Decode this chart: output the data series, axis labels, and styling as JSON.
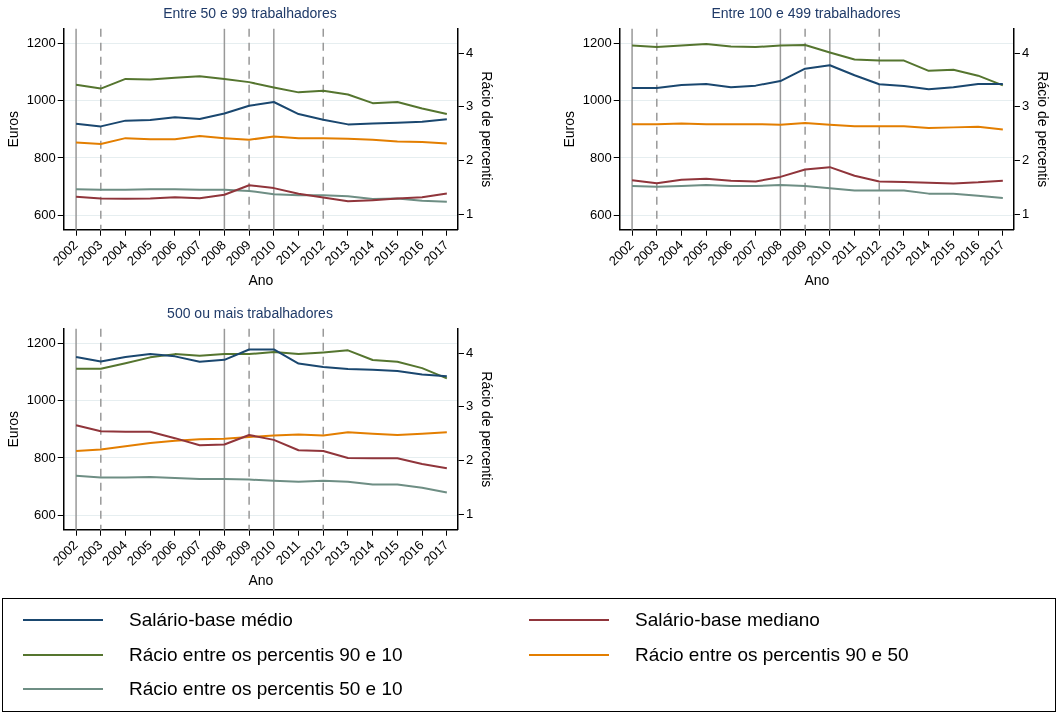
{
  "chart_data": [
    {
      "type": "line",
      "title": "Entre 50 e 99 trabalhadores",
      "xlabel": "Ano",
      "ylabel": "Euros",
      "y2label": "Rácio de percentis",
      "x": [
        2002,
        2003,
        2004,
        2005,
        2006,
        2007,
        2008,
        2009,
        2010,
        2011,
        2012,
        2013,
        2014,
        2015,
        2016,
        2017
      ],
      "xlim": [
        2001.5,
        2017.45
      ],
      "xticks": [
        2002,
        2003,
        2004,
        2005,
        2006,
        2007,
        2008,
        2009,
        2010,
        2011,
        2012,
        2013,
        2014,
        2015,
        2016,
        2017
      ],
      "ylim": [
        550,
        1250
      ],
      "yticks": [
        600,
        800,
        1000,
        1200
      ],
      "y2lim": [
        0.72,
        4.45
      ],
      "y2ticks": [
        1,
        2,
        3,
        4
      ],
      "grid": "y",
      "line_style": "solid",
      "ref_lines": [
        {
          "axis": "x",
          "value": 2002,
          "color": "#999999",
          "line_style": "solid"
        },
        {
          "axis": "x",
          "value": 2008,
          "color": "#999999",
          "line_style": "solid"
        },
        {
          "axis": "x",
          "value": 2010,
          "color": "#999999",
          "line_style": "solid"
        },
        {
          "axis": "x",
          "value": 2003,
          "color": "#999999",
          "line_style": "dashed"
        },
        {
          "axis": "x",
          "value": 2009,
          "color": "#999999",
          "line_style": "dashed"
        },
        {
          "axis": "x",
          "value": 2012,
          "color": "#999999",
          "line_style": "dashed"
        }
      ],
      "series": [
        {
          "color": "#1a476f",
          "values": [
            919,
            910,
            930,
            932,
            942,
            936,
            955,
            982,
            995,
            953,
            933,
            917,
            920,
            923,
            926,
            935
          ]
        },
        {
          "color": "#90353b",
          "values": [
            665,
            659,
            658,
            659,
            663,
            660,
            672,
            705,
            695,
            675,
            662,
            649,
            653,
            659,
            663,
            676
          ]
        },
        {
          "color": "#55752f",
          "axis": "y2",
          "values": [
            3.41,
            3.34,
            3.52,
            3.51,
            3.54,
            3.57,
            3.52,
            3.46,
            3.36,
            3.27,
            3.3,
            3.23,
            3.07,
            3.09,
            2.97,
            2.87
          ]
        },
        {
          "color": "#e37e00",
          "axis": "y2",
          "values": [
            2.34,
            2.31,
            2.42,
            2.4,
            2.4,
            2.46,
            2.42,
            2.39,
            2.45,
            2.42,
            2.42,
            2.41,
            2.39,
            2.36,
            2.35,
            2.32
          ]
        },
        {
          "color": "#6e8e84",
          "axis": "y2",
          "values": [
            1.47,
            1.46,
            1.46,
            1.47,
            1.47,
            1.46,
            1.46,
            1.44,
            1.38,
            1.36,
            1.36,
            1.34,
            1.29,
            1.3,
            1.26,
            1.24
          ]
        }
      ]
    },
    {
      "type": "line",
      "title": "Entre 100 e 499 trabalhadores",
      "xlabel": "Ano",
      "ylabel": "Euros",
      "y2label": "Rácio de percentis",
      "x": [
        2002,
        2003,
        2004,
        2005,
        2006,
        2007,
        2008,
        2009,
        2010,
        2011,
        2012,
        2013,
        2014,
        2015,
        2016,
        2017
      ],
      "xlim": [
        2001.5,
        2017.45
      ],
      "xticks": [
        2002,
        2003,
        2004,
        2005,
        2006,
        2007,
        2008,
        2009,
        2010,
        2011,
        2012,
        2013,
        2014,
        2015,
        2016,
        2017
      ],
      "ylim": [
        550,
        1250
      ],
      "yticks": [
        600,
        800,
        1000,
        1200
      ],
      "y2lim": [
        0.72,
        4.45
      ],
      "y2ticks": [
        1,
        2,
        3,
        4
      ],
      "grid": "y",
      "line_style": "solid",
      "ref_lines": [
        {
          "axis": "x",
          "value": 2002,
          "color": "#999999",
          "line_style": "solid"
        },
        {
          "axis": "x",
          "value": 2008,
          "color": "#999999",
          "line_style": "solid"
        },
        {
          "axis": "x",
          "value": 2010,
          "color": "#999999",
          "line_style": "solid"
        },
        {
          "axis": "x",
          "value": 2003,
          "color": "#999999",
          "line_style": "dashed"
        },
        {
          "axis": "x",
          "value": 2009,
          "color": "#999999",
          "line_style": "dashed"
        },
        {
          "axis": "x",
          "value": 2012,
          "color": "#999999",
          "line_style": "dashed"
        }
      ],
      "series": [
        {
          "color": "#1a476f",
          "values": [
            1044,
            1044,
            1054,
            1058,
            1046,
            1052,
            1068,
            1111,
            1123,
            1088,
            1057,
            1051,
            1039,
            1046,
            1058,
            1058
          ]
        },
        {
          "color": "#90353b",
          "values": [
            722,
            712,
            724,
            728,
            721,
            718,
            734,
            760,
            768,
            738,
            718,
            716,
            714,
            711,
            715,
            721
          ]
        },
        {
          "color": "#55752f",
          "axis": "y2",
          "values": [
            4.14,
            4.11,
            4.14,
            4.17,
            4.12,
            4.11,
            4.14,
            4.15,
            4.01,
            3.88,
            3.86,
            3.86,
            3.67,
            3.69,
            3.58,
            3.4
          ]
        },
        {
          "color": "#e37e00",
          "axis": "y2",
          "values": [
            2.68,
            2.68,
            2.69,
            2.68,
            2.68,
            2.68,
            2.67,
            2.7,
            2.67,
            2.64,
            2.64,
            2.64,
            2.61,
            2.62,
            2.63,
            2.58
          ]
        },
        {
          "color": "#6e8e84",
          "axis": "y2",
          "values": [
            1.53,
            1.52,
            1.53,
            1.55,
            1.53,
            1.53,
            1.55,
            1.53,
            1.49,
            1.45,
            1.45,
            1.45,
            1.39,
            1.39,
            1.35,
            1.31
          ]
        }
      ]
    },
    {
      "type": "line",
      "title": "500 ou mais trabalhadores",
      "xlabel": "Ano",
      "ylabel": "Euros",
      "y2label": "Rácio de percentis",
      "x": [
        2002,
        2003,
        2004,
        2005,
        2006,
        2007,
        2008,
        2009,
        2010,
        2011,
        2012,
        2013,
        2014,
        2015,
        2016,
        2017
      ],
      "xlim": [
        2001.5,
        2017.45
      ],
      "xticks": [
        2002,
        2003,
        2004,
        2005,
        2006,
        2007,
        2008,
        2009,
        2010,
        2011,
        2012,
        2013,
        2014,
        2015,
        2016,
        2017
      ],
      "ylim": [
        550,
        1250
      ],
      "yticks": [
        600,
        800,
        1000,
        1200
      ],
      "y2lim": [
        0.72,
        4.45
      ],
      "y2ticks": [
        1,
        2,
        3,
        4
      ],
      "grid": "y",
      "legend": "bottom",
      "line_style": "solid",
      "ref_lines": [
        {
          "axis": "x",
          "value": 2002,
          "color": "#999999",
          "line_style": "solid"
        },
        {
          "axis": "x",
          "value": 2008,
          "color": "#999999",
          "line_style": "solid"
        },
        {
          "axis": "x",
          "value": 2010,
          "color": "#999999",
          "line_style": "solid"
        },
        {
          "axis": "x",
          "value": 2003,
          "color": "#999999",
          "line_style": "dashed"
        },
        {
          "axis": "x",
          "value": 2009,
          "color": "#999999",
          "line_style": "dashed"
        },
        {
          "axis": "x",
          "value": 2012,
          "color": "#999999",
          "line_style": "dashed"
        }
      ],
      "series": [
        {
          "name": "Salário-base médio",
          "color": "#1a476f",
          "values": [
            1152,
            1136,
            1152,
            1162,
            1154,
            1135,
            1142,
            1178,
            1178,
            1129,
            1117,
            1110,
            1107,
            1103,
            1091,
            1085
          ]
        },
        {
          "name": "Salário-base mediano",
          "color": "#90353b",
          "values": [
            914,
            893,
            891,
            891,
            869,
            844,
            847,
            880,
            863,
            827,
            824,
            800,
            799,
            799,
            779,
            764
          ]
        },
        {
          "name": "Rácio entre os percentis 90 e 10",
          "color": "#55752f",
          "axis": "y2",
          "values": [
            3.71,
            3.71,
            3.81,
            3.92,
            3.98,
            3.95,
            3.98,
            3.98,
            4.02,
            3.98,
            4.01,
            4.05,
            3.87,
            3.84,
            3.72,
            3.53
          ]
        },
        {
          "name": "Rácio entre os percentis 90 e 50",
          "color": "#e37e00",
          "axis": "y2",
          "values": [
            2.18,
            2.21,
            2.27,
            2.33,
            2.37,
            2.4,
            2.41,
            2.44,
            2.47,
            2.49,
            2.47,
            2.53,
            2.5,
            2.48,
            2.5,
            2.53
          ]
        },
        {
          "name": "Rácio entre os percentis 50 e 10",
          "color": "#6e8e84",
          "axis": "y2",
          "values": [
            1.72,
            1.69,
            1.69,
            1.7,
            1.68,
            1.66,
            1.66,
            1.65,
            1.63,
            1.61,
            1.63,
            1.61,
            1.56,
            1.56,
            1.5,
            1.41
          ]
        }
      ]
    }
  ]
}
